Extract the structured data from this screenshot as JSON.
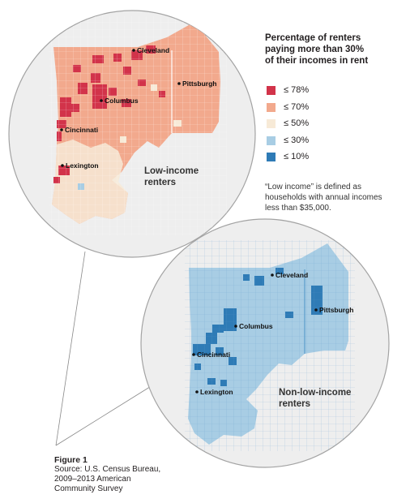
{
  "legend": {
    "title": [
      "Percentage of renters",
      "paying more than 30%",
      "of their incomes in rent"
    ],
    "items": [
      {
        "label": "≤ 78%",
        "color": "#d2334a"
      },
      {
        "label": "≤ 70%",
        "color": "#f2a98d"
      },
      {
        "label": "≤ 50%",
        "color": "#f7ead7"
      },
      {
        "label": "≤ 30%",
        "color": "#a8cde4"
      },
      {
        "label": "≤ 10%",
        "color": "#2e7bb6"
      }
    ]
  },
  "note": "“Low income” is defined as households with annual incomes less than $35,000.",
  "map_low": {
    "title": [
      "Low-income",
      "renters"
    ],
    "cities": [
      "Cleveland",
      "Pittsburgh",
      "Columbus",
      "Cincinnati",
      "Lexington"
    ]
  },
  "map_high": {
    "title": [
      "Non-low-income",
      "renters"
    ],
    "cities": [
      "Cleveland",
      "Pittsburgh",
      "Columbus",
      "Cincinnati",
      "Lexington"
    ]
  },
  "figure": {
    "label": "Figure 1",
    "source": [
      "Source: U.S. Census Bureau,",
      "2009–2013 American",
      "Community Survey"
    ]
  }
}
